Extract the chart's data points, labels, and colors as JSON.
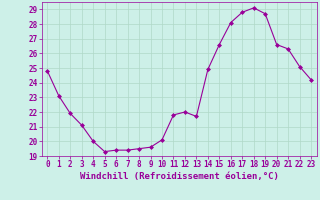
{
  "x": [
    0,
    1,
    2,
    3,
    4,
    5,
    6,
    7,
    8,
    9,
    10,
    11,
    12,
    13,
    14,
    15,
    16,
    17,
    18,
    19,
    20,
    21,
    22,
    23
  ],
  "y": [
    24.8,
    23.1,
    21.9,
    21.1,
    20.0,
    19.3,
    19.4,
    19.4,
    19.5,
    19.6,
    20.1,
    21.8,
    22.0,
    21.7,
    24.9,
    26.6,
    28.1,
    28.8,
    29.1,
    28.7,
    26.6,
    26.3,
    25.1,
    24.2
  ],
  "line_color": "#990099",
  "marker": "D",
  "marker_size": 2,
  "background_color": "#cdf0e8",
  "grid_color": "#b0d8c8",
  "xlabel": "Windchill (Refroidissement éolien,°C)",
  "ylim": [
    19,
    29.5
  ],
  "xlim": [
    -0.5,
    23.5
  ],
  "yticks": [
    19,
    20,
    21,
    22,
    23,
    24,
    25,
    26,
    27,
    28,
    29
  ],
  "xticks": [
    0,
    1,
    2,
    3,
    4,
    5,
    6,
    7,
    8,
    9,
    10,
    11,
    12,
    13,
    14,
    15,
    16,
    17,
    18,
    19,
    20,
    21,
    22,
    23
  ],
  "tick_color": "#990099",
  "tick_fontsize": 5.5,
  "xlabel_fontsize": 6.5
}
